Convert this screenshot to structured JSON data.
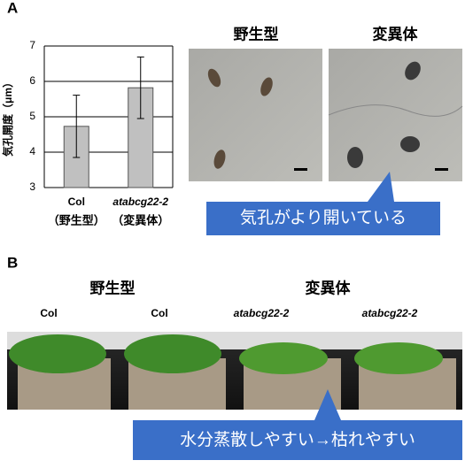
{
  "panel_a": {
    "label": "A",
    "photo_labels": [
      "野生型",
      "変異体"
    ],
    "callout": "気孔がより開いている"
  },
  "chart_data": {
    "type": "bar",
    "y_label": "気孔開度（μm）",
    "categories": [
      "Col",
      "atabcg22-2"
    ],
    "category_notes": [
      "（野生型）",
      "（変異体）"
    ],
    "values": [
      4.73,
      5.82
    ],
    "errors": [
      0.88,
      0.87
    ],
    "color": "#c0c0c0",
    "ylim": [
      3,
      7
    ],
    "yticks": [
      3,
      4,
      5,
      6,
      7
    ],
    "grid": true
  },
  "panel_b": {
    "label": "B",
    "group_labels": [
      "野生型",
      "変異体"
    ],
    "plant_labels": [
      "Col",
      "Col",
      "atabcg22-2",
      "atabcg22-2"
    ],
    "callout": "水分蒸散しやすい→枯れやすい"
  }
}
